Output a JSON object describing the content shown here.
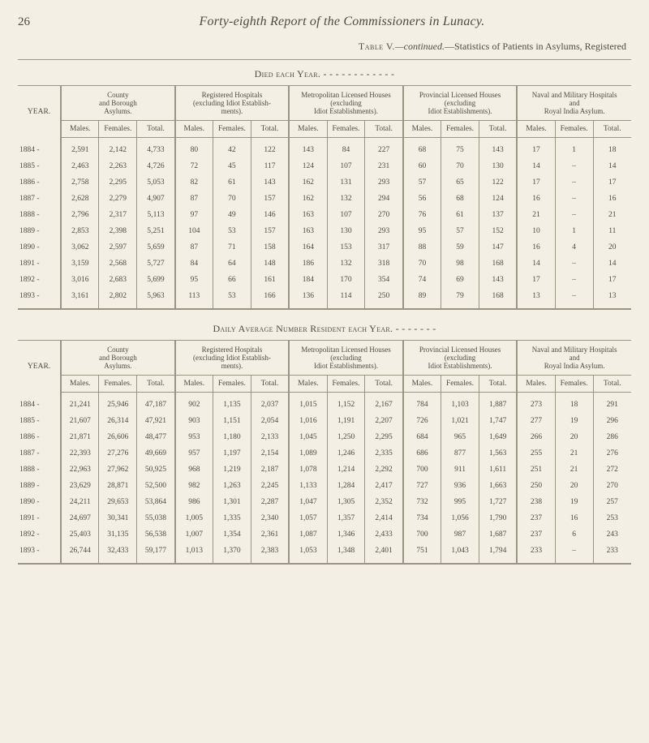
{
  "page": {
    "number": "26",
    "title": "Forty-eighth Report of the Commissioners in Lunacy."
  },
  "caption": {
    "leadSmallCaps": "Table V.",
    "emdash": "—",
    "italic": "continued.",
    "rest": "—Statistics of Patients in Asylums, Registered"
  },
  "sectionDied": {
    "title": "Died each Year.   -   -   -   -   -   -   -   -   -   -   -   -"
  },
  "sectionAvg": {
    "title": "Daily Average Number Resident each Year.   -   -   -   -   -   -   -"
  },
  "groups": [
    {
      "title": "County\nand Borough\nAsylums."
    },
    {
      "title": "Registered Hospitals\n(excluding Idiot Establish-\nments)."
    },
    {
      "title": "Metropolitan Licensed Houses\n(excluding\nIdiot Establishments)."
    },
    {
      "title": "Provincial Licensed Houses\n(excluding\nIdiot Establishments)."
    },
    {
      "title": "Naval and Military Hospitals\nand\nRoyal India Asylum."
    }
  ],
  "yearHeader": "YEAR.",
  "subHeaders": [
    "Males.",
    "Females.",
    "Total."
  ],
  "rowsDied": [
    {
      "year": "1884  -",
      "v": [
        "2,591",
        "2,142",
        "4,733",
        "80",
        "42",
        "122",
        "143",
        "84",
        "227",
        "68",
        "75",
        "143",
        "17",
        "1",
        "18"
      ]
    },
    {
      "year": "1885  -",
      "v": [
        "2,463",
        "2,263",
        "4,726",
        "72",
        "45",
        "117",
        "124",
        "107",
        "231",
        "60",
        "70",
        "130",
        "14",
        "–",
        "14"
      ]
    },
    {
      "year": "1886  -",
      "v": [
        "2,758",
        "2,295",
        "5,053",
        "82",
        "61",
        "143",
        "162",
        "131",
        "293",
        "57",
        "65",
        "122",
        "17",
        "–",
        "17"
      ]
    },
    {
      "year": "1887  -",
      "v": [
        "2,628",
        "2,279",
        "4,907",
        "87",
        "70",
        "157",
        "162",
        "132",
        "294",
        "56",
        "68",
        "124",
        "16",
        "–",
        "16"
      ]
    },
    {
      "year": "1888  -",
      "v": [
        "2,796",
        "2,317",
        "5,113",
        "97",
        "49",
        "146",
        "163",
        "107",
        "270",
        "76",
        "61",
        "137",
        "21",
        "–",
        "21"
      ]
    },
    {
      "year": "1889  -",
      "v": [
        "2,853",
        "2,398",
        "5,251",
        "104",
        "53",
        "157",
        "163",
        "130",
        "293",
        "95",
        "57",
        "152",
        "10",
        "1",
        "11"
      ]
    },
    {
      "year": "1890  -",
      "v": [
        "3,062",
        "2,597",
        "5,659",
        "87",
        "71",
        "158",
        "164",
        "153",
        "317",
        "88",
        "59",
        "147",
        "16",
        "4",
        "20"
      ]
    },
    {
      "year": "1891  -",
      "v": [
        "3,159",
        "2,568",
        "5,727",
        "84",
        "64",
        "148",
        "186",
        "132",
        "318",
        "70",
        "98",
        "168",
        "14",
        "–",
        "14"
      ]
    },
    {
      "year": "1892  -",
      "v": [
        "3,016",
        "2,683",
        "5,699",
        "95",
        "66",
        "161",
        "184",
        "170",
        "354",
        "74",
        "69",
        "143",
        "17",
        "–",
        "17"
      ]
    },
    {
      "year": "1893  -",
      "v": [
        "3,161",
        "2,802",
        "5,963",
        "113",
        "53",
        "166",
        "136",
        "114",
        "250",
        "89",
        "79",
        "168",
        "13",
        "–",
        "13"
      ]
    }
  ],
  "rowsAvg": [
    {
      "year": "1884  -",
      "v": [
        "21,241",
        "25,946",
        "47,187",
        "902",
        "1,135",
        "2,037",
        "1,015",
        "1,152",
        "2,167",
        "784",
        "1,103",
        "1,887",
        "273",
        "18",
        "291"
      ]
    },
    {
      "year": "1885  -",
      "v": [
        "21,607",
        "26,314",
        "47,921",
        "903",
        "1,151",
        "2,054",
        "1,016",
        "1,191",
        "2,207",
        "726",
        "1,021",
        "1,747",
        "277",
        "19",
        "296"
      ]
    },
    {
      "year": "1886  -",
      "v": [
        "21,871",
        "26,606",
        "48,477",
        "953",
        "1,180",
        "2,133",
        "1,045",
        "1,250",
        "2,295",
        "684",
        "965",
        "1,649",
        "266",
        "20",
        "286"
      ]
    },
    {
      "year": "1887  -",
      "v": [
        "22,393",
        "27,276",
        "49,669",
        "957",
        "1,197",
        "2,154",
        "1,089",
        "1,246",
        "2,335",
        "686",
        "877",
        "1,563",
        "255",
        "21",
        "276"
      ]
    },
    {
      "year": "1888  -",
      "v": [
        "22,963",
        "27,962",
        "50,925",
        "968",
        "1,219",
        "2,187",
        "1,078",
        "1,214",
        "2,292",
        "700",
        "911",
        "1,611",
        "251",
        "21",
        "272"
      ]
    },
    {
      "year": "1889  -",
      "v": [
        "23,629",
        "28,871",
        "52,500",
        "982",
        "1,263",
        "2,245",
        "1,133",
        "1,284",
        "2,417",
        "727",
        "936",
        "1,663",
        "250",
        "20",
        "270"
      ]
    },
    {
      "year": "1890  -",
      "v": [
        "24,211",
        "29,653",
        "53,864",
        "986",
        "1,301",
        "2,287",
        "1,047",
        "1,305",
        "2,352",
        "732",
        "995",
        "1,727",
        "238",
        "19",
        "257"
      ]
    },
    {
      "year": "1891  -",
      "v": [
        "24,697",
        "30,341",
        "55,038",
        "1,005",
        "1,335",
        "2,340",
        "1,057",
        "1,357",
        "2,414",
        "734",
        "1,056",
        "1,790",
        "237",
        "16",
        "253"
      ]
    },
    {
      "year": "1892  -",
      "v": [
        "25,403",
        "31,135",
        "56,538",
        "1,007",
        "1,354",
        "2,361",
        "1,087",
        "1,346",
        "2,433",
        "700",
        "987",
        "1,687",
        "237",
        "6",
        "243"
      ]
    },
    {
      "year": "1893  -",
      "v": [
        "26,744",
        "32,433",
        "59,177",
        "1,013",
        "1,370",
        "2,383",
        "1,053",
        "1,348",
        "2,401",
        "751",
        "1,043",
        "1,794",
        "233",
        "–",
        "233"
      ]
    }
  ],
  "style": {
    "background": "#f3efe5",
    "ink": "#504a3e",
    "rule": "#9c9482"
  }
}
